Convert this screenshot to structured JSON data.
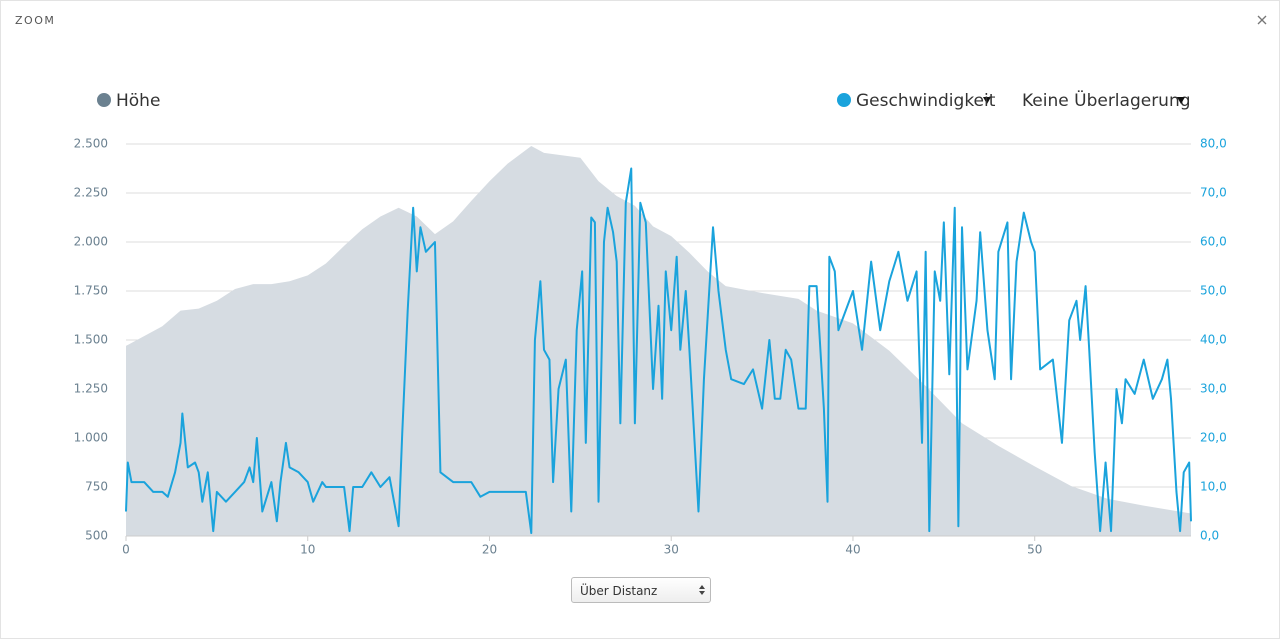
{
  "ui": {
    "header": "ZOOM",
    "overlay": "Keine Überlagerung",
    "x_mode": "Über Distanz"
  },
  "chart_data": {
    "type": "area-line",
    "xlim": [
      0,
      58.6
    ],
    "xticks": [
      0,
      10,
      20,
      30,
      40,
      50
    ],
    "ylim": [
      500,
      2500
    ],
    "yticks": [
      {
        "value": 500,
        "label": "500"
      },
      {
        "value": 750,
        "label": "750"
      },
      {
        "value": 1000,
        "label": "1.000"
      },
      {
        "value": 1250,
        "label": "1.250"
      },
      {
        "value": 1500,
        "label": "1.500"
      },
      {
        "value": 1750,
        "label": "1.750"
      },
      {
        "value": 2000,
        "label": "2.000"
      },
      {
        "value": 2250,
        "label": "2.250"
      },
      {
        "value": 2500,
        "label": "2.500"
      }
    ],
    "y2lim": [
      0,
      80
    ],
    "y2ticks": [
      {
        "value": 0,
        "label": "0,0"
      },
      {
        "value": 10,
        "label": "10,0"
      },
      {
        "value": 20,
        "label": "20,0"
      },
      {
        "value": 30,
        "label": "30,0"
      },
      {
        "value": 40,
        "label": "40,0"
      },
      {
        "value": 50,
        "label": "50,0"
      },
      {
        "value": 60,
        "label": "60,0"
      },
      {
        "value": 70,
        "label": "70,0"
      },
      {
        "value": 80,
        "label": "80,0"
      }
    ],
    "grid": true,
    "series": [
      {
        "name": "Höhe",
        "kind": "area",
        "color": "#d6dce2",
        "legend_color": "#6b8190",
        "x": [
          0,
          2,
          3,
          4,
          5,
          6,
          7,
          8,
          9,
          10,
          11,
          12,
          13,
          14,
          15,
          16,
          17,
          18,
          19,
          20,
          21,
          22.3,
          23,
          25,
          26,
          27,
          28,
          29,
          30,
          31,
          32,
          33,
          35,
          37,
          38,
          40,
          42,
          44,
          46,
          48,
          50,
          52,
          54,
          56,
          58.6
        ],
        "values": [
          1470,
          1570,
          1650,
          1660,
          1700,
          1760,
          1785,
          1785,
          1800,
          1830,
          1890,
          1980,
          2065,
          2130,
          2175,
          2130,
          2040,
          2105,
          2210,
          2310,
          2400,
          2490,
          2455,
          2430,
          2310,
          2235,
          2185,
          2080,
          2030,
          1945,
          1850,
          1775,
          1740,
          1710,
          1650,
          1585,
          1445,
          1265,
          1075,
          960,
          855,
          755,
          690,
          655,
          615
        ]
      },
      {
        "name": "Geschwindigkeit",
        "kind": "line",
        "axis": "y2",
        "color": "#1aa3dc",
        "x": [
          0,
          0.1,
          0.3,
          1,
          1.5,
          2,
          2.3,
          2.7,
          3,
          3.1,
          3.4,
          3.8,
          4,
          4.2,
          4.5,
          4.8,
          5,
          5.5,
          6,
          6.5,
          6.8,
          7,
          7.2,
          7.5,
          8,
          8.3,
          8.5,
          8.8,
          9,
          9.5,
          10,
          10.3,
          10.8,
          11,
          12,
          12.3,
          12.5,
          13,
          13.5,
          14,
          14.5,
          15,
          15.2,
          15.5,
          15.8,
          16,
          16.2,
          16.5,
          17,
          17.3,
          18,
          19,
          19.5,
          20,
          21,
          22,
          22.3,
          22.5,
          22.8,
          23,
          23.3,
          23.5,
          23.8,
          24.2,
          24.5,
          24.8,
          25.1,
          25.3,
          25.6,
          25.8,
          26,
          26.3,
          26.5,
          26.8,
          27,
          27.2,
          27.5,
          27.8,
          28,
          28.3,
          28.6,
          29,
          29.3,
          29.5,
          29.7,
          30,
          30.3,
          30.5,
          30.8,
          31,
          31.5,
          31.8,
          32.3,
          32.6,
          33,
          33.3,
          34,
          34.5,
          35,
          35.4,
          35.7,
          36,
          36.3,
          36.6,
          37,
          37.4,
          37.6,
          38,
          38.4,
          38.6,
          38.7,
          39,
          39.2,
          39.6,
          40,
          40.5,
          41,
          41.5,
          42,
          42.5,
          43,
          43.5,
          43.8,
          44,
          44.2,
          44.5,
          44.8,
          45,
          45.3,
          45.6,
          45.8,
          46,
          46.3,
          46.8,
          47,
          47.4,
          47.8,
          48,
          48.5,
          48.7,
          49,
          49.4,
          49.8,
          50,
          50.3,
          51,
          51.5,
          51.9,
          52.3,
          52.5,
          52.8,
          53,
          53.3,
          53.6,
          53.9,
          54.2,
          54.5,
          54.8,
          55,
          55.5,
          56,
          56.5,
          57,
          57.3,
          57.5,
          57.8,
          58,
          58.2,
          58.5,
          58.6
        ],
        "values": [
          5,
          15,
          11,
          11,
          9,
          9,
          8,
          13,
          19,
          25,
          14,
          15,
          13,
          7,
          13,
          1,
          9,
          7,
          9,
          11,
          14,
          11,
          20,
          5,
          11,
          3,
          11,
          19,
          14,
          13,
          11,
          7,
          11,
          10,
          10,
          1,
          10,
          10,
          13,
          10,
          12,
          2,
          21,
          46,
          67,
          54,
          63,
          58,
          60,
          13,
          11,
          11,
          8,
          9,
          9,
          9,
          0.6,
          40,
          52,
          38,
          36,
          11,
          30,
          36,
          5,
          42,
          54,
          19,
          65,
          64,
          7,
          60,
          67,
          62,
          56,
          23,
          68,
          75,
          23,
          68,
          64,
          30,
          47,
          28,
          54,
          42,
          57,
          38,
          50,
          38,
          5,
          32,
          63,
          50,
          38,
          32,
          31,
          34,
          26,
          40,
          28,
          28,
          38,
          36,
          26,
          26,
          51,
          51,
          26,
          7,
          57,
          54,
          42,
          46,
          50,
          38,
          56,
          42,
          52,
          58,
          48,
          54,
          19,
          58,
          1,
          54,
          48,
          64,
          33,
          67,
          2,
          63,
          34,
          48,
          62,
          42,
          32,
          58,
          64,
          32,
          56,
          66,
          60,
          58,
          34,
          36,
          19,
          44,
          48,
          40,
          51,
          38,
          17,
          1,
          15,
          1,
          30,
          23,
          32,
          29,
          36,
          28,
          32,
          36,
          28,
          9,
          1,
          13,
          15,
          3
        ]
      }
    ]
  }
}
